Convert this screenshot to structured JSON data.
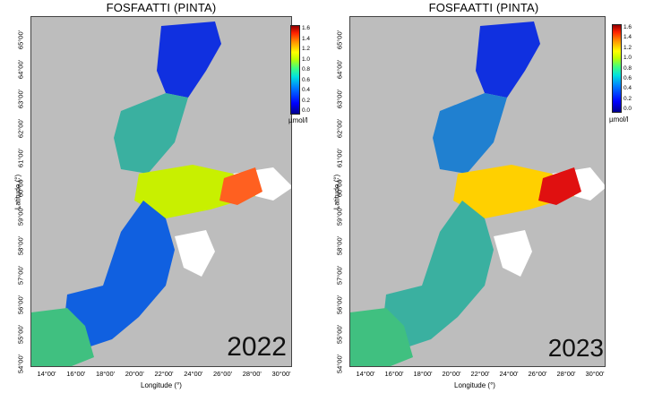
{
  "panels": [
    {
      "title": "FOSFAATTI (PINTA)",
      "year": "2022",
      "xlabel": "Longitude (°)",
      "ylabel": "Latitude (°)",
      "colorbar": {
        "unit": "µmol/l",
        "ticks": [
          "1.6",
          "1.4",
          "1.2",
          "1.0",
          "0.8",
          "0.6",
          "0.4",
          "0.2",
          "0.0"
        ]
      },
      "colors": {
        "north": "#1030e0",
        "gulf_finland_east": "#ff6020",
        "gulf_finland_mid": "#c8f000",
        "bothnian_sea": "#3ab0a0",
        "south": "#1060e0",
        "southwest": "#40c080"
      }
    },
    {
      "title": "FOSFAATTI (PINTA)",
      "year": "2023",
      "xlabel": "Longitude (°)",
      "ylabel": "Latitude (°)",
      "colorbar": {
        "unit": "µmol/l",
        "ticks": [
          "1.6",
          "1.4",
          "1.2",
          "1.0",
          "0.8",
          "0.6",
          "0.4",
          "0.2",
          "0.0"
        ]
      },
      "colors": {
        "north": "#1030e0",
        "gulf_finland_east": "#e01010",
        "gulf_finland_mid": "#ffd000",
        "bothnian_sea": "#2080d0",
        "south": "#3ab0a0",
        "southwest": "#40c080"
      }
    }
  ],
  "x_ticks": [
    "14°00'",
    "16°00'",
    "18°00'",
    "20°00'",
    "22°00'",
    "24°00'",
    "26°00'",
    "28°00'",
    "30°00'"
  ],
  "y_ticks": [
    "65°00'",
    "64°00'",
    "63°00'",
    "62°00'",
    "61°00'",
    "60°00'",
    "59°00'",
    "58°00'",
    "57°00'",
    "56°00'",
    "55°00'",
    "54°00'"
  ]
}
